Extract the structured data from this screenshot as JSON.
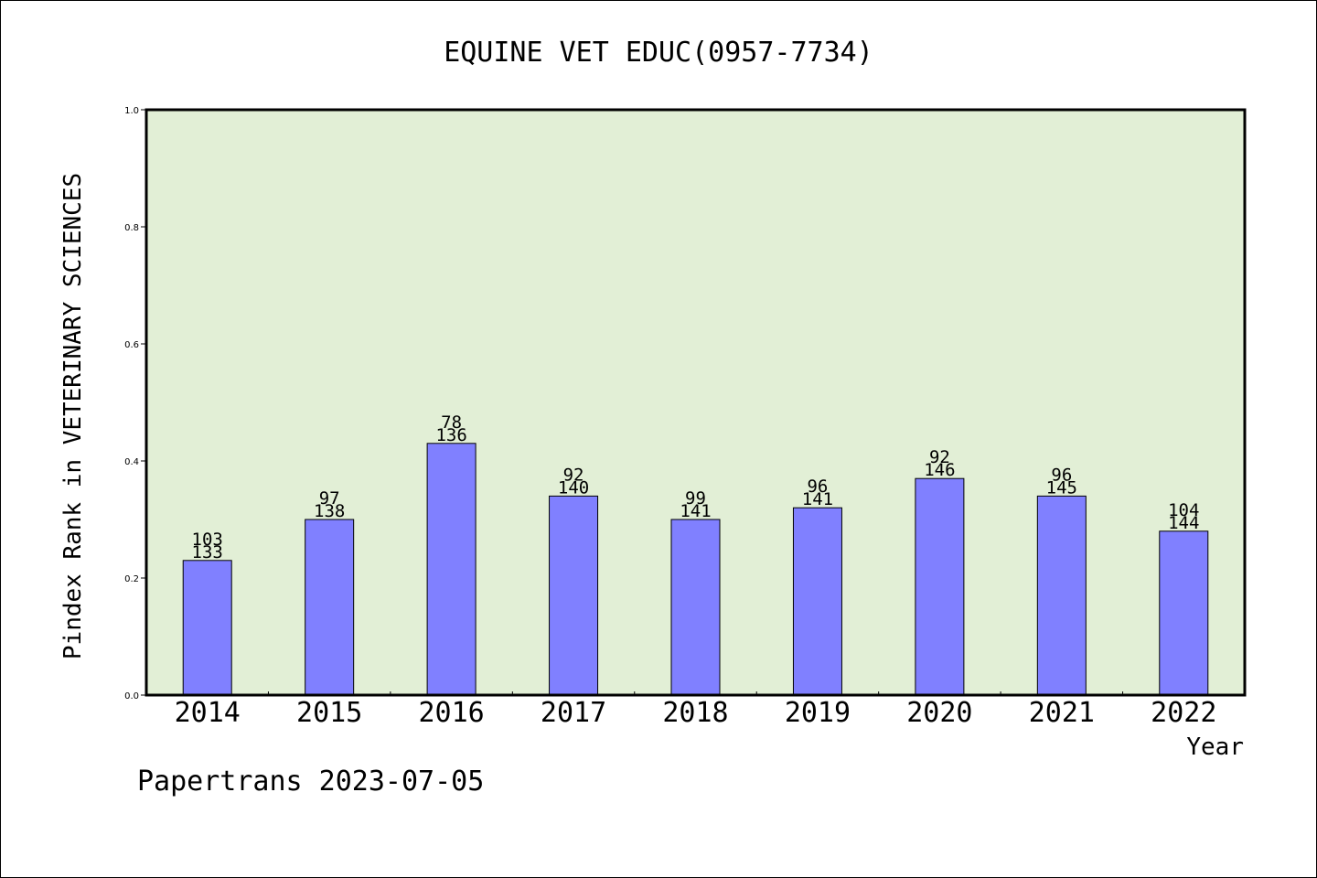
{
  "chart_data": {
    "type": "bar",
    "title": "EQUINE VET EDUC(0957-7734)",
    "xlabel": "Year",
    "ylabel": "Pindex Rank in VETERINARY SCIENCES",
    "categories": [
      "2014",
      "2015",
      "2016",
      "2017",
      "2018",
      "2019",
      "2020",
      "2021",
      "2022"
    ],
    "values": [
      0.23,
      0.3,
      0.43,
      0.34,
      0.3,
      0.32,
      0.37,
      0.34,
      0.28
    ],
    "rank_labels": [
      "103",
      "97",
      "78",
      "92",
      "99",
      "96",
      "92",
      "96",
      "104"
    ],
    "total_labels": [
      "133",
      "138",
      "136",
      "140",
      "141",
      "141",
      "146",
      "145",
      "144"
    ],
    "ylim": [
      0,
      1.0
    ],
    "yticks": [
      "0.0",
      "0.2",
      "0.4",
      "0.6",
      "0.8",
      "1.0"
    ],
    "grid": false,
    "legend": "none",
    "colors": {
      "bar": "#8080ff",
      "plot_background": "#e2efd6",
      "axis": "#000000"
    }
  },
  "footer": {
    "credit": "Papertrans 2023-07-05"
  }
}
